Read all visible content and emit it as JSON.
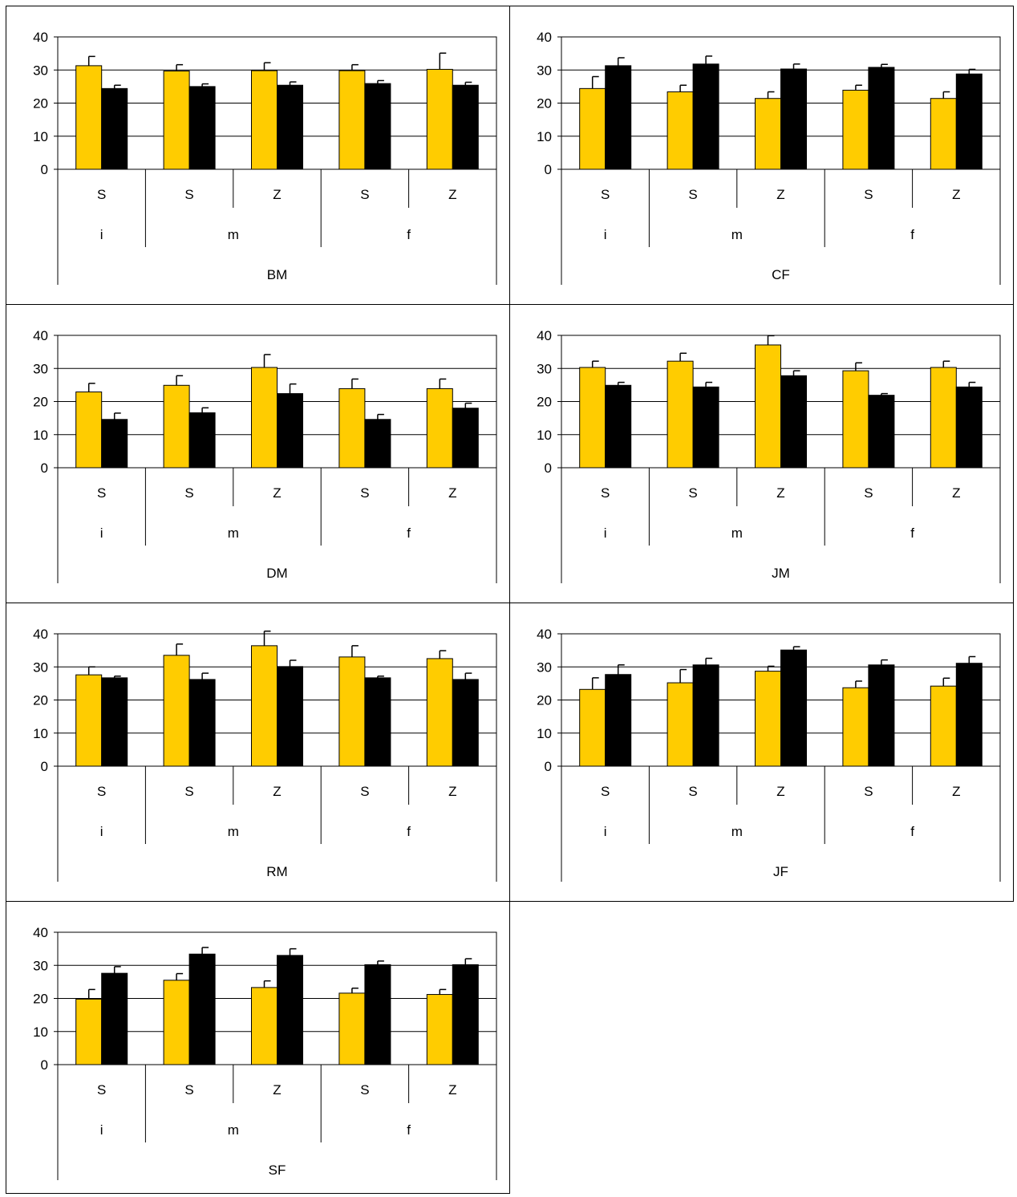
{
  "colors": {
    "series1": "#FFCC00",
    "series2": "#000000",
    "grid": "#000000",
    "frame": "#000000"
  },
  "chart_data": [
    {
      "type": "bar",
      "title": "BM",
      "ylim": [
        0,
        40
      ],
      "yticks": [
        "0",
        "10",
        "20",
        "30",
        "40"
      ],
      "grid": true,
      "categories": [
        "S",
        "S",
        "Z",
        "S",
        "Z"
      ],
      "groups": [
        "i",
        "m",
        "f"
      ],
      "group_sizes": [
        1,
        2,
        2
      ],
      "series": [
        {
          "values": [
            31.3,
            29.7,
            29.8,
            29.8,
            30.2
          ],
          "errors": [
            2.8,
            1.9,
            2.4,
            1.8,
            4.9
          ]
        },
        {
          "values": [
            24.4,
            25.0,
            25.4,
            25.9,
            25.4
          ],
          "errors": [
            1.0,
            0.8,
            1.0,
            0.9,
            0.9
          ]
        }
      ]
    },
    {
      "type": "bar",
      "title": "CF",
      "ylim": [
        0,
        40
      ],
      "yticks": [
        "0",
        "10",
        "20",
        "30",
        "40"
      ],
      "grid": true,
      "categories": [
        "S",
        "S",
        "Z",
        "S",
        "Z"
      ],
      "groups": [
        "i",
        "m",
        "f"
      ],
      "group_sizes": [
        1,
        2,
        2
      ],
      "series": [
        {
          "values": [
            24.4,
            23.4,
            21.4,
            23.9,
            21.4
          ],
          "errors": [
            3.6,
            2.0,
            2.0,
            1.5,
            2.0
          ]
        },
        {
          "values": [
            31.3,
            31.8,
            30.3,
            30.8,
            28.8
          ],
          "errors": [
            2.4,
            2.4,
            1.5,
            0.9,
            1.4
          ]
        }
      ]
    },
    {
      "type": "bar",
      "title": "DM",
      "ylim": [
        0,
        40
      ],
      "yticks": [
        "0",
        "10",
        "20",
        "30",
        "40"
      ],
      "grid": true,
      "categories": [
        "S",
        "S",
        "Z",
        "S",
        "Z"
      ],
      "groups": [
        "i",
        "m",
        "f"
      ],
      "group_sizes": [
        1,
        2,
        2
      ],
      "series": [
        {
          "values": [
            22.9,
            24.9,
            30.3,
            23.9,
            23.9
          ],
          "errors": [
            2.6,
            2.9,
            3.9,
            2.9,
            2.9
          ]
        },
        {
          "values": [
            14.6,
            16.6,
            22.4,
            14.6,
            18.0
          ],
          "errors": [
            1.9,
            1.5,
            2.9,
            1.5,
            1.5
          ]
        }
      ]
    },
    {
      "type": "bar",
      "title": "JM",
      "ylim": [
        0,
        40
      ],
      "yticks": [
        "0",
        "10",
        "20",
        "30",
        "40"
      ],
      "grid": true,
      "categories": [
        "S",
        "S",
        "Z",
        "S",
        "Z"
      ],
      "groups": [
        "i",
        "m",
        "f"
      ],
      "group_sizes": [
        1,
        2,
        2
      ],
      "series": [
        {
          "values": [
            30.3,
            32.2,
            37.1,
            29.3,
            30.3
          ],
          "errors": [
            1.9,
            2.4,
            2.8,
            2.4,
            1.9
          ]
        },
        {
          "values": [
            24.9,
            24.4,
            27.8,
            21.9,
            24.4
          ],
          "errors": [
            0.9,
            1.4,
            1.5,
            0.5,
            1.4
          ]
        }
      ]
    },
    {
      "type": "bar",
      "title": "RM",
      "ylim": [
        0,
        40
      ],
      "yticks": [
        "0",
        "10",
        "20",
        "30",
        "40"
      ],
      "grid": true,
      "categories": [
        "S",
        "S",
        "Z",
        "S",
        "Z"
      ],
      "groups": [
        "i",
        "m",
        "f"
      ],
      "group_sizes": [
        1,
        2,
        2
      ],
      "series": [
        {
          "values": [
            27.6,
            33.5,
            36.4,
            33.0,
            32.5
          ],
          "errors": [
            2.4,
            3.4,
            4.4,
            3.4,
            2.4
          ]
        },
        {
          "values": [
            26.7,
            26.2,
            30.1,
            26.7,
            26.2
          ],
          "errors": [
            0.5,
            1.9,
            1.9,
            0.5,
            1.9
          ]
        }
      ]
    },
    {
      "type": "bar",
      "title": "JF",
      "ylim": [
        0,
        40
      ],
      "yticks": [
        "0",
        "10",
        "20",
        "30",
        "40"
      ],
      "grid": true,
      "categories": [
        "S",
        "S",
        "Z",
        "S",
        "Z"
      ],
      "groups": [
        "i",
        "m",
        "f"
      ],
      "group_sizes": [
        1,
        2,
        2
      ],
      "series": [
        {
          "values": [
            23.2,
            25.2,
            28.7,
            23.7,
            24.2
          ],
          "errors": [
            3.5,
            4.0,
            1.5,
            2.0,
            2.4
          ]
        },
        {
          "values": [
            27.7,
            30.6,
            35.1,
            30.6,
            31.1
          ],
          "errors": [
            2.9,
            2.0,
            1.0,
            1.5,
            2.0
          ]
        }
      ]
    },
    {
      "type": "bar",
      "title": "SF",
      "ylim": [
        0,
        40
      ],
      "yticks": [
        "0",
        "10",
        "20",
        "30",
        "40"
      ],
      "grid": true,
      "categories": [
        "S",
        "S",
        "Z",
        "S",
        "Z"
      ],
      "groups": [
        "i",
        "m",
        "f"
      ],
      "group_sizes": [
        1,
        2,
        2
      ],
      "series": [
        {
          "values": [
            19.8,
            25.5,
            23.3,
            21.6,
            21.2
          ],
          "errors": [
            2.9,
            2.0,
            2.0,
            1.5,
            1.5
          ]
        },
        {
          "values": [
            27.6,
            33.4,
            33.0,
            30.2,
            30.2
          ],
          "errors": [
            2.0,
            2.0,
            2.0,
            1.1,
            1.8
          ]
        }
      ]
    }
  ]
}
